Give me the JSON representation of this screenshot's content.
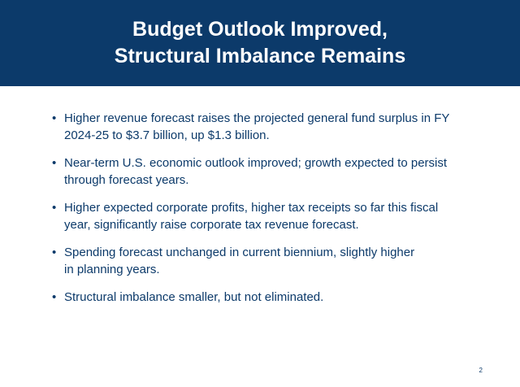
{
  "slide": {
    "title_lines": [
      "Budget Outlook Improved,",
      "Structural Imbalance Remains"
    ],
    "bullet_symbol": "•",
    "bullets": [
      {
        "lines": [
          "Higher revenue forecast raises the projected general fund surplus in FY",
          "2024-25 to $3.7 billion, up $1.3 billion."
        ]
      },
      {
        "lines": [
          "Near-term U.S. economic outlook improved; growth expected to persist",
          "through forecast years."
        ]
      },
      {
        "lines": [
          "Higher expected corporate profits, higher tax receipts so far this fiscal",
          "year, significantly raise corporate tax revenue forecast."
        ]
      },
      {
        "lines": [
          "Spending forecast unchanged in current biennium, slightly higher",
          "in planning years."
        ]
      },
      {
        "lines": [
          "Structural imbalance smaller, but not eliminated."
        ]
      }
    ],
    "page_number": "2",
    "colors": {
      "header_background": "#0c3a6a",
      "header_text": "#ffffff",
      "body_text": "#0c3a6a"
    }
  }
}
